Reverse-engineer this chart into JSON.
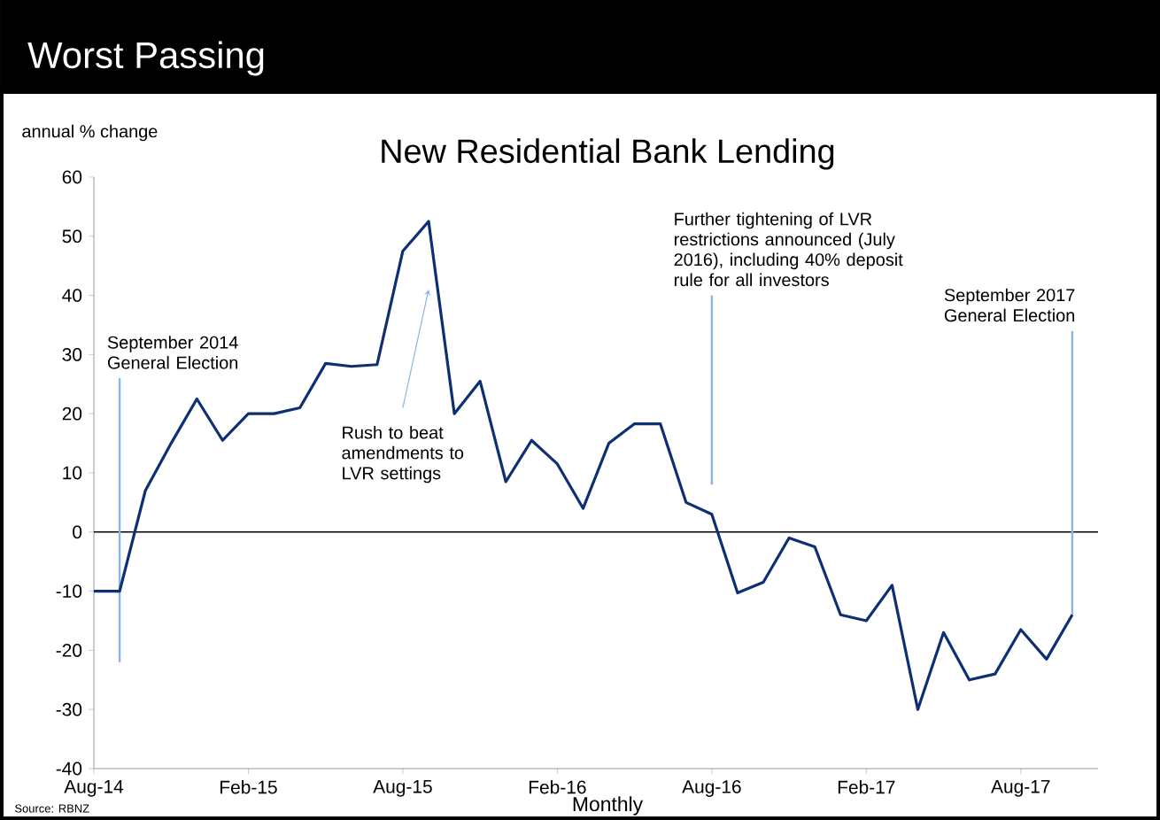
{
  "chart_data": {
    "type": "line",
    "title": "Worst Passing",
    "subtitle": "New Residential Bank Lending",
    "xlabel": "Monthly",
    "ylabel": "annual % change",
    "color": "#0d2f73",
    "x": [
      "2014-08",
      "2014-09",
      "2014-10",
      "2014-11",
      "2014-12",
      "2015-01",
      "2015-02",
      "2015-03",
      "2015-04",
      "2015-05",
      "2015-06",
      "2015-07",
      "2015-08",
      "2015-09",
      "2015-10",
      "2015-11",
      "2015-12",
      "2016-01",
      "2016-02",
      "2016-03",
      "2016-04",
      "2016-05",
      "2016-06",
      "2016-07",
      "2016-08",
      "2016-09",
      "2016-10",
      "2016-11",
      "2016-12",
      "2017-01",
      "2017-02",
      "2017-03",
      "2017-04",
      "2017-05",
      "2017-06",
      "2017-07",
      "2017-08",
      "2017-09",
      "2017-10"
    ],
    "values": [
      -10,
      -10,
      7,
      15,
      22.5,
      15.5,
      20,
      20,
      21,
      28.5,
      28,
      28.3,
      47.5,
      52.5,
      20,
      25.5,
      8.5,
      15.5,
      11.5,
      4,
      15,
      18.3,
      18.3,
      5,
      3,
      -10.3,
      -8.5,
      -1,
      -2.5,
      -14,
      -15,
      -9,
      -30,
      -17,
      -25,
      -24,
      -16.5,
      -21.5,
      -14
    ],
    "xlim": [
      "2014-08",
      "2017-11"
    ],
    "xticks": [
      {
        "value": "2014-08",
        "label": "Aug-14"
      },
      {
        "value": "2015-02",
        "label": "Feb-15"
      },
      {
        "value": "2015-08",
        "label": "Aug-15"
      },
      {
        "value": "2016-02",
        "label": "Feb-16"
      },
      {
        "value": "2016-08",
        "label": "Aug-16"
      },
      {
        "value": "2017-02",
        "label": "Feb-17"
      },
      {
        "value": "2017-08",
        "label": "Aug-17"
      }
    ],
    "ylim": [
      -40,
      60
    ],
    "yticks": [
      -40,
      -30,
      -20,
      -10,
      0,
      10,
      20,
      30,
      40,
      50,
      60
    ],
    "ref_lines": [
      {
        "axis": "y",
        "value": 0,
        "color": "#000000"
      },
      {
        "axis": "x",
        "value": "2014-09",
        "label": "September 2014 General Election",
        "color": "#8eb4e3"
      },
      {
        "axis": "x",
        "value": "2016-08",
        "label": "Further tightening of LVR restrictions announced (July 2016), including 40% deposit rule for all investors",
        "color": "#8eb4e3"
      },
      {
        "axis": "x",
        "value": "2017-10",
        "label": "September 2017 General Election",
        "color": "#8eb4e3"
      }
    ],
    "annotations": [
      {
        "text": "Rush to beat amendments to LVR settings",
        "x": "2015-09",
        "y": 41
      },
      "Source: RBNZ"
    ]
  }
}
